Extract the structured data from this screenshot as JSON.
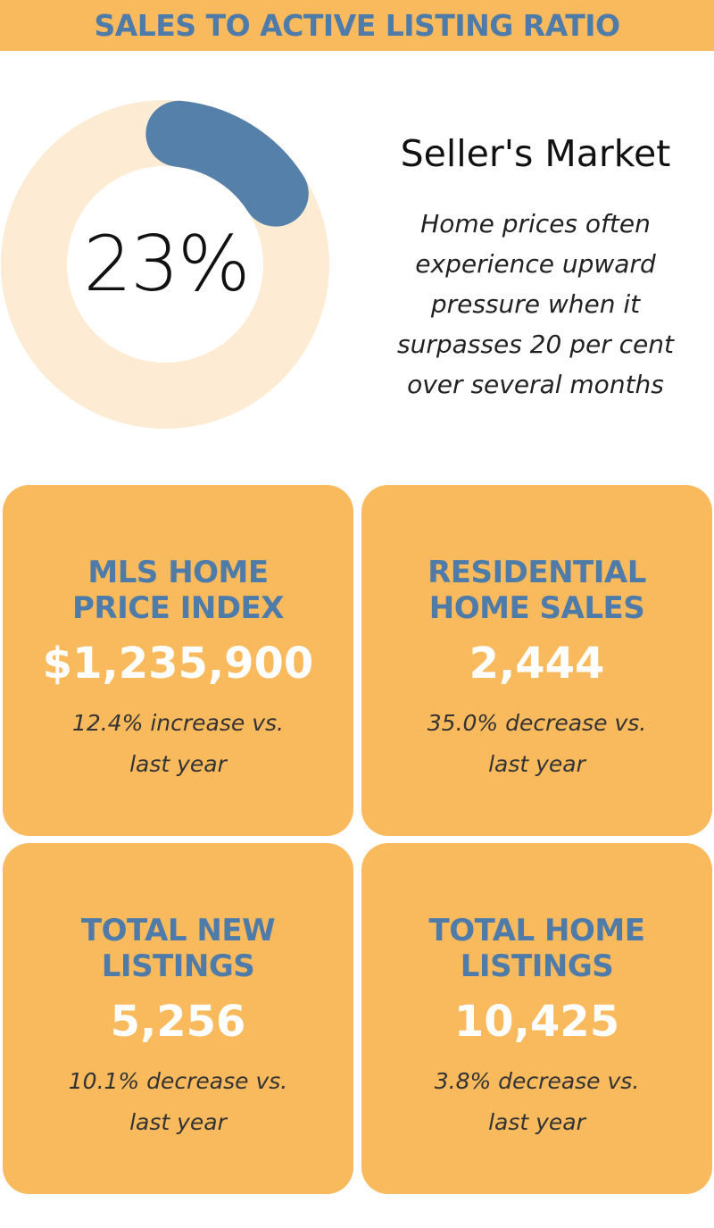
{
  "header": {
    "title": "SALES TO ACTIVE LISTING RATIO"
  },
  "chart_data": {
    "type": "donut",
    "value": 23,
    "max": 100,
    "center_label": "23%",
    "colors": {
      "filled": "#5580AA",
      "track": "#FDEBD3"
    }
  },
  "market": {
    "title": "Seller's Market",
    "description": "Home prices often\nexperience upward\npressure when it\nsurpasses 20 per cent\nover several months"
  },
  "colors": {
    "header_bg": "#F9B95D",
    "card_bg": "#F9B95D",
    "title_blue": "#4F7BA8",
    "value_white": "#FFFFFF"
  },
  "cards": [
    {
      "title": "MLS HOME\nPRICE INDEX",
      "value": "$1,235,900",
      "change": "12.4% increase vs.\nlast year"
    },
    {
      "title": "RESIDENTIAL\nHOME SALES",
      "value": "2,444",
      "change": "35.0% decrease vs.\nlast year"
    },
    {
      "title": "TOTAL NEW\nLISTINGS",
      "value": "5,256",
      "change": "10.1% decrease vs.\nlast year"
    },
    {
      "title": "TOTAL HOME\nLISTINGS",
      "value": "10,425",
      "change": "3.8% decrease vs.\nlast year"
    }
  ]
}
